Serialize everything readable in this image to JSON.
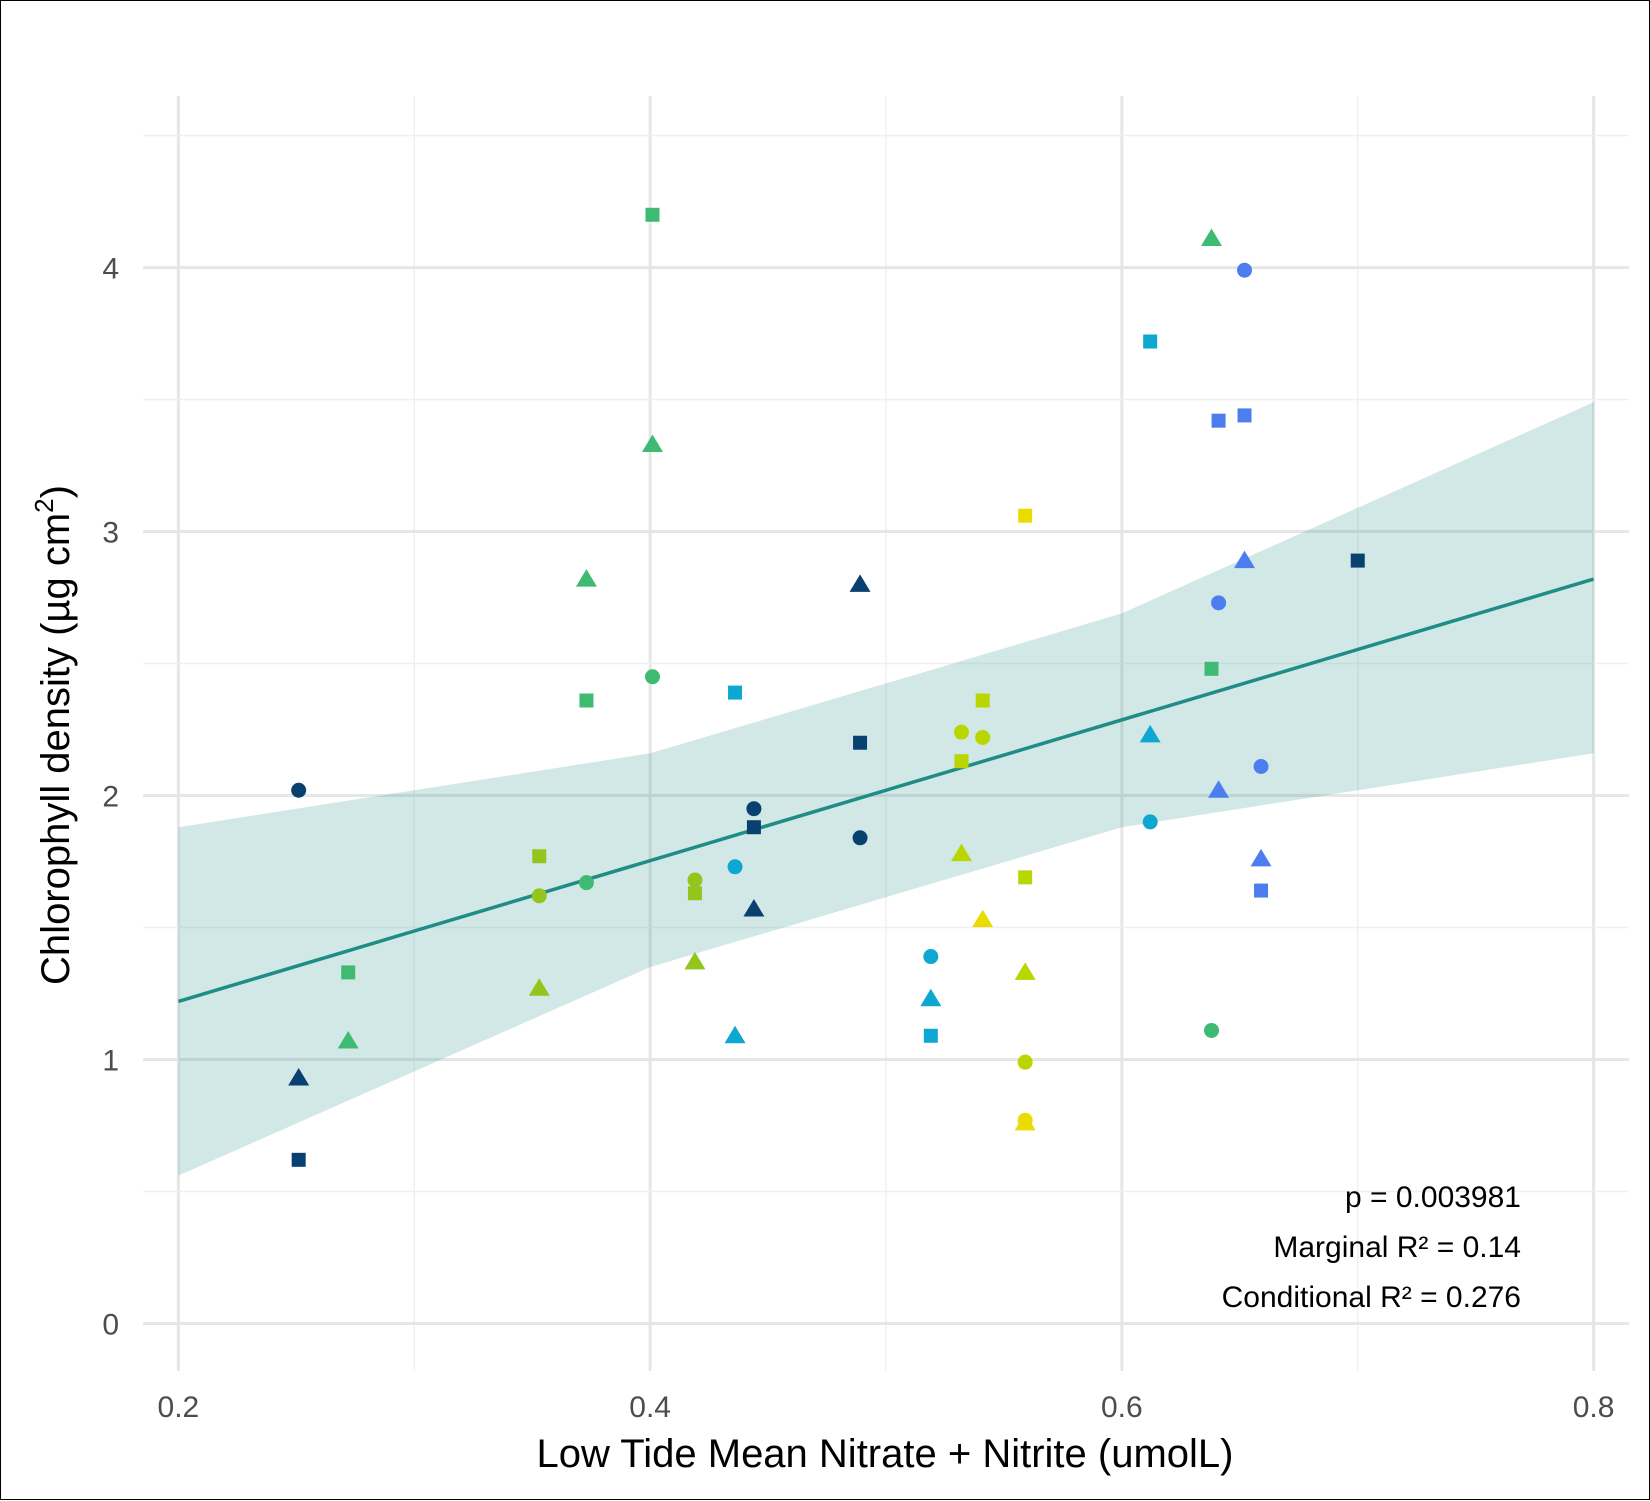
{
  "chart_data": {
    "type": "scatter",
    "xlabel": "Low Tide Mean Nitrate + Nitrite (umolL)",
    "ylabel": "Chlorophyll density (µg cm",
    "ylabel_sup": "2",
    "ylabel_close": ")",
    "xlim": [
      0.185,
      0.815
    ],
    "ylim": [
      -0.18,
      4.65
    ],
    "x_ticks": [
      0.2,
      0.4,
      0.6,
      0.8
    ],
    "x_tick_labels": [
      "0.2",
      "0.4",
      "0.6",
      "0.8"
    ],
    "y_ticks": [
      0,
      1,
      2,
      3,
      4
    ],
    "y_tick_labels": [
      "0",
      "1",
      "2",
      "3",
      "4"
    ],
    "grid": true,
    "fit_line": {
      "x": [
        0.2,
        0.8
      ],
      "y": [
        1.22,
        2.82
      ],
      "color": "#1f8c85"
    },
    "confidence_band": {
      "x": [
        0.2,
        0.4,
        0.6,
        0.8
      ],
      "upper": [
        1.88,
        2.16,
        2.69,
        3.49
      ],
      "lower": [
        0.56,
        1.35,
        1.88,
        2.16
      ],
      "color": "#1f8c85",
      "opacity": 0.2
    },
    "annotations": [
      "p = 0.003981",
      "Marginal R² = 0.14",
      "Conditional R² = 0.276"
    ],
    "points": [
      {
        "x": 0.251,
        "y": 0.62,
        "shape": "square",
        "color": "#08416f"
      },
      {
        "x": 0.251,
        "y": 0.93,
        "shape": "triangle",
        "color": "#08416f"
      },
      {
        "x": 0.251,
        "y": 2.02,
        "shape": "circle",
        "color": "#08416f"
      },
      {
        "x": 0.272,
        "y": 1.33,
        "shape": "square",
        "color": "#3fba73"
      },
      {
        "x": 0.272,
        "y": 1.07,
        "shape": "triangle",
        "color": "#3fba73"
      },
      {
        "x": 0.353,
        "y": 1.77,
        "shape": "square",
        "color": "#92c61c"
      },
      {
        "x": 0.353,
        "y": 1.62,
        "shape": "circle",
        "color": "#92c61c"
      },
      {
        "x": 0.353,
        "y": 1.27,
        "shape": "triangle",
        "color": "#92c61c"
      },
      {
        "x": 0.373,
        "y": 2.82,
        "shape": "triangle",
        "color": "#3fba73"
      },
      {
        "x": 0.373,
        "y": 2.36,
        "shape": "square",
        "color": "#3fba73"
      },
      {
        "x": 0.373,
        "y": 1.67,
        "shape": "circle",
        "color": "#3fba73"
      },
      {
        "x": 0.401,
        "y": 4.2,
        "shape": "square",
        "color": "#3fba73"
      },
      {
        "x": 0.401,
        "y": 3.33,
        "shape": "triangle",
        "color": "#3fba73"
      },
      {
        "x": 0.401,
        "y": 2.45,
        "shape": "circle",
        "color": "#3fba73"
      },
      {
        "x": 0.419,
        "y": 1.68,
        "shape": "circle",
        "color": "#92c61c"
      },
      {
        "x": 0.419,
        "y": 1.63,
        "shape": "square",
        "color": "#92c61c"
      },
      {
        "x": 0.419,
        "y": 1.37,
        "shape": "triangle",
        "color": "#92c61c"
      },
      {
        "x": 0.436,
        "y": 2.39,
        "shape": "square",
        "color": "#0ea7d2"
      },
      {
        "x": 0.436,
        "y": 1.73,
        "shape": "circle",
        "color": "#0ea7d2"
      },
      {
        "x": 0.436,
        "y": 1.09,
        "shape": "triangle",
        "color": "#0ea7d2"
      },
      {
        "x": 0.444,
        "y": 1.95,
        "shape": "circle",
        "color": "#08416f"
      },
      {
        "x": 0.444,
        "y": 1.88,
        "shape": "square",
        "color": "#08416f"
      },
      {
        "x": 0.444,
        "y": 1.57,
        "shape": "triangle",
        "color": "#08416f"
      },
      {
        "x": 0.489,
        "y": 2.8,
        "shape": "triangle",
        "color": "#08416f"
      },
      {
        "x": 0.489,
        "y": 2.2,
        "shape": "square",
        "color": "#08416f"
      },
      {
        "x": 0.489,
        "y": 1.84,
        "shape": "circle",
        "color": "#08416f"
      },
      {
        "x": 0.519,
        "y": 1.39,
        "shape": "circle",
        "color": "#0ea7d2"
      },
      {
        "x": 0.519,
        "y": 1.23,
        "shape": "triangle",
        "color": "#0ea7d2"
      },
      {
        "x": 0.519,
        "y": 1.09,
        "shape": "square",
        "color": "#0ea7d2"
      },
      {
        "x": 0.532,
        "y": 2.24,
        "shape": "circle",
        "color": "#b9d600"
      },
      {
        "x": 0.532,
        "y": 2.13,
        "shape": "square",
        "color": "#b9d600"
      },
      {
        "x": 0.532,
        "y": 1.78,
        "shape": "triangle",
        "color": "#b9d600"
      },
      {
        "x": 0.541,
        "y": 2.36,
        "shape": "square",
        "color": "#b9d600"
      },
      {
        "x": 0.541,
        "y": 2.22,
        "shape": "circle",
        "color": "#b9d600"
      },
      {
        "x": 0.541,
        "y": 1.53,
        "shape": "triangle",
        "color": "#ebdc00"
      },
      {
        "x": 0.559,
        "y": 3.06,
        "shape": "square",
        "color": "#ebdc00"
      },
      {
        "x": 0.559,
        "y": 1.69,
        "shape": "square",
        "color": "#b9d600"
      },
      {
        "x": 0.559,
        "y": 1.33,
        "shape": "triangle",
        "color": "#b9d600"
      },
      {
        "x": 0.559,
        "y": 0.99,
        "shape": "circle",
        "color": "#b9d600"
      },
      {
        "x": 0.559,
        "y": 0.77,
        "shape": "circle",
        "color": "#ebdc00"
      },
      {
        "x": 0.559,
        "y": 0.76,
        "shape": "triangle",
        "color": "#ebdc00"
      },
      {
        "x": 0.612,
        "y": 3.72,
        "shape": "square",
        "color": "#0ea7d2"
      },
      {
        "x": 0.612,
        "y": 2.23,
        "shape": "triangle",
        "color": "#0ea7d2"
      },
      {
        "x": 0.612,
        "y": 1.9,
        "shape": "circle",
        "color": "#0ea7d2"
      },
      {
        "x": 0.638,
        "y": 4.11,
        "shape": "triangle",
        "color": "#3fba73"
      },
      {
        "x": 0.638,
        "y": 2.48,
        "shape": "square",
        "color": "#3fba73"
      },
      {
        "x": 0.638,
        "y": 1.11,
        "shape": "circle",
        "color": "#3fba73"
      },
      {
        "x": 0.641,
        "y": 3.42,
        "shape": "square",
        "color": "#4d7ef0"
      },
      {
        "x": 0.641,
        "y": 2.73,
        "shape": "circle",
        "color": "#4d7ef0"
      },
      {
        "x": 0.641,
        "y": 2.02,
        "shape": "triangle",
        "color": "#4d7ef0"
      },
      {
        "x": 0.652,
        "y": 3.99,
        "shape": "circle",
        "color": "#4d7ef0"
      },
      {
        "x": 0.652,
        "y": 3.44,
        "shape": "square",
        "color": "#4d7ef0"
      },
      {
        "x": 0.652,
        "y": 2.89,
        "shape": "triangle",
        "color": "#4d7ef0"
      },
      {
        "x": 0.659,
        "y": 2.11,
        "shape": "circle",
        "color": "#4d7ef0"
      },
      {
        "x": 0.659,
        "y": 1.76,
        "shape": "triangle",
        "color": "#4d7ef0"
      },
      {
        "x": 0.659,
        "y": 1.64,
        "shape": "square",
        "color": "#4d7ef0"
      },
      {
        "x": 0.7,
        "y": 2.89,
        "shape": "square",
        "color": "#08416f"
      }
    ]
  }
}
